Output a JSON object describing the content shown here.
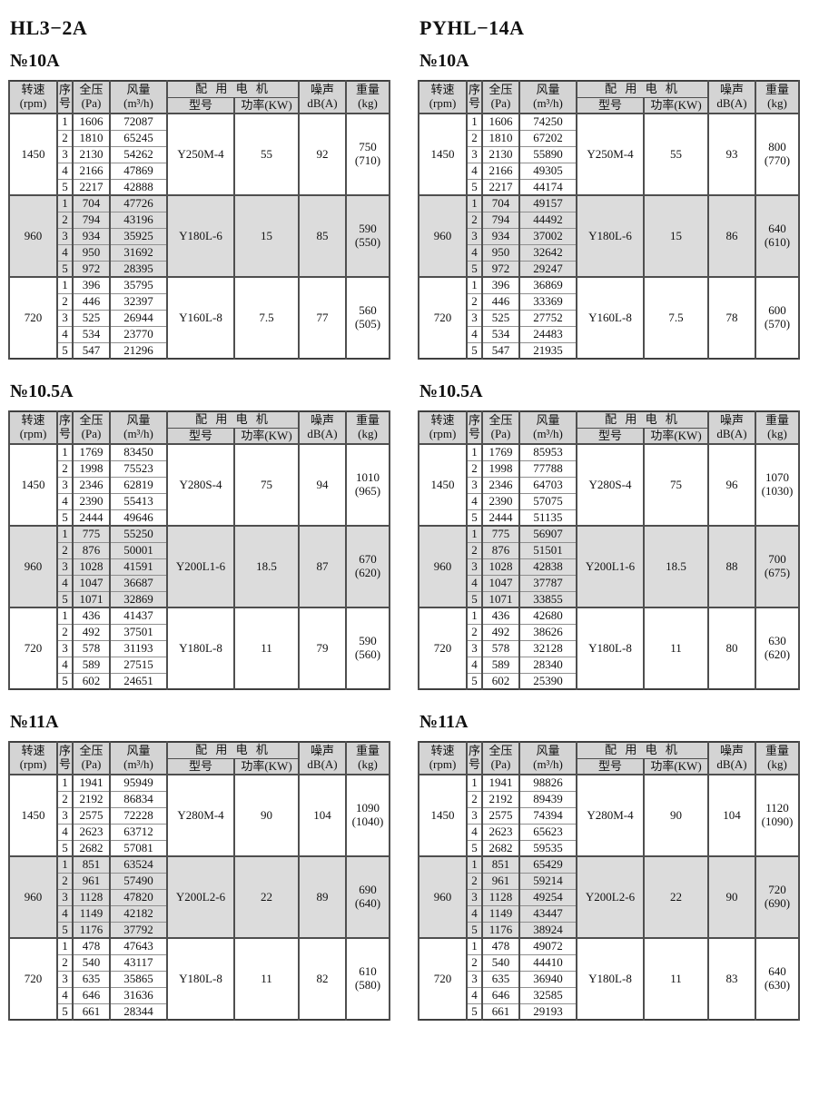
{
  "colors": {
    "header_bg": "#d4d4d4",
    "band_bg": "#dcdcdc",
    "line_dark": "#4f4f4f",
    "line_light": "#8f8f8f",
    "ink": "#111111"
  },
  "headers": {
    "speed": [
      "转速",
      "(rpm)"
    ],
    "serial": [
      "序",
      "号"
    ],
    "pressure": [
      "全压",
      "(Pa)"
    ],
    "airflow": [
      "风量",
      "(m³/h)"
    ],
    "motor_group": "配 用 电 机",
    "motor_model": "型号",
    "motor_power": "功率(KW)",
    "noise": [
      "噪声",
      "dB(A)"
    ],
    "weight": [
      "重量",
      "(kg)"
    ]
  },
  "columns": [
    {
      "model_title": "HL3−2A",
      "sections": [
        {
          "size_title": "№10A",
          "groups": [
            {
              "rpm": "1450",
              "shaded": false,
              "rows": [
                [
                  "1",
                  "1606",
                  "72087"
                ],
                [
                  "2",
                  "1810",
                  "65245"
                ],
                [
                  "3",
                  "2130",
                  "54262"
                ],
                [
                  "4",
                  "2166",
                  "47869"
                ],
                [
                  "5",
                  "2217",
                  "42888"
                ]
              ],
              "motor_model": "Y250M-4",
              "motor_power": "55",
              "noise": "92",
              "weight": "750",
              "weight_note": "(710)"
            },
            {
              "rpm": "960",
              "shaded": true,
              "rows": [
                [
                  "1",
                  "704",
                  "47726"
                ],
                [
                  "2",
                  "794",
                  "43196"
                ],
                [
                  "3",
                  "934",
                  "35925"
                ],
                [
                  "4",
                  "950",
                  "31692"
                ],
                [
                  "5",
                  "972",
                  "28395"
                ]
              ],
              "motor_model": "Y180L-6",
              "motor_power": "15",
              "noise": "85",
              "weight": "590",
              "weight_note": "(550)"
            },
            {
              "rpm": "720",
              "shaded": false,
              "rows": [
                [
                  "1",
                  "396",
                  "35795"
                ],
                [
                  "2",
                  "446",
                  "32397"
                ],
                [
                  "3",
                  "525",
                  "26944"
                ],
                [
                  "4",
                  "534",
                  "23770"
                ],
                [
                  "5",
                  "547",
                  "21296"
                ]
              ],
              "motor_model": "Y160L-8",
              "motor_power": "7.5",
              "noise": "77",
              "weight": "560",
              "weight_note": "(505)"
            }
          ]
        },
        {
          "size_title": "№10.5A",
          "groups": [
            {
              "rpm": "1450",
              "shaded": false,
              "rows": [
                [
                  "1",
                  "1769",
                  "83450"
                ],
                [
                  "2",
                  "1998",
                  "75523"
                ],
                [
                  "3",
                  "2346",
                  "62819"
                ],
                [
                  "4",
                  "2390",
                  "55413"
                ],
                [
                  "5",
                  "2444",
                  "49646"
                ]
              ],
              "motor_model": "Y280S-4",
              "motor_power": "75",
              "noise": "94",
              "weight": "1010",
              "weight_note": "(965)"
            },
            {
              "rpm": "960",
              "shaded": true,
              "rows": [
                [
                  "1",
                  "775",
                  "55250"
                ],
                [
                  "2",
                  "876",
                  "50001"
                ],
                [
                  "3",
                  "1028",
                  "41591"
                ],
                [
                  "4",
                  "1047",
                  "36687"
                ],
                [
                  "5",
                  "1071",
                  "32869"
                ]
              ],
              "motor_model": "Y200L1-6",
              "motor_power": "18.5",
              "noise": "87",
              "weight": "670",
              "weight_note": "(620)"
            },
            {
              "rpm": "720",
              "shaded": false,
              "rows": [
                [
                  "1",
                  "436",
                  "41437"
                ],
                [
                  "2",
                  "492",
                  "37501"
                ],
                [
                  "3",
                  "578",
                  "31193"
                ],
                [
                  "4",
                  "589",
                  "27515"
                ],
                [
                  "5",
                  "602",
                  "24651"
                ]
              ],
              "motor_model": "Y180L-8",
              "motor_power": "11",
              "noise": "79",
              "weight": "590",
              "weight_note": "(560)"
            }
          ]
        },
        {
          "size_title": "№11A",
          "groups": [
            {
              "rpm": "1450",
              "shaded": false,
              "rows": [
                [
                  "1",
                  "1941",
                  "95949"
                ],
                [
                  "2",
                  "2192",
                  "86834"
                ],
                [
                  "3",
                  "2575",
                  "72228"
                ],
                [
                  "4",
                  "2623",
                  "63712"
                ],
                [
                  "5",
                  "2682",
                  "57081"
                ]
              ],
              "motor_model": "Y280M-4",
              "motor_power": "90",
              "noise": "104",
              "weight": "1090",
              "weight_note": "(1040)"
            },
            {
              "rpm": "960",
              "shaded": true,
              "rows": [
                [
                  "1",
                  "851",
                  "63524"
                ],
                [
                  "2",
                  "961",
                  "57490"
                ],
                [
                  "3",
                  "1128",
                  "47820"
                ],
                [
                  "4",
                  "1149",
                  "42182"
                ],
                [
                  "5",
                  "1176",
                  "37792"
                ]
              ],
              "motor_model": "Y200L2-6",
              "motor_power": "22",
              "noise": "89",
              "weight": "690",
              "weight_note": "(640)"
            },
            {
              "rpm": "720",
              "shaded": false,
              "rows": [
                [
                  "1",
                  "478",
                  "47643"
                ],
                [
                  "2",
                  "540",
                  "43117"
                ],
                [
                  "3",
                  "635",
                  "35865"
                ],
                [
                  "4",
                  "646",
                  "31636"
                ],
                [
                  "5",
                  "661",
                  "28344"
                ]
              ],
              "motor_model": "Y180L-8",
              "motor_power": "11",
              "noise": "82",
              "weight": "610",
              "weight_note": "(580)"
            }
          ]
        }
      ]
    },
    {
      "model_title": "PYHL−14A",
      "sections": [
        {
          "size_title": "№10A",
          "groups": [
            {
              "rpm": "1450",
              "shaded": false,
              "rows": [
                [
                  "1",
                  "1606",
                  "74250"
                ],
                [
                  "2",
                  "1810",
                  "67202"
                ],
                [
                  "3",
                  "2130",
                  "55890"
                ],
                [
                  "4",
                  "2166",
                  "49305"
                ],
                [
                  "5",
                  "2217",
                  "44174"
                ]
              ],
              "motor_model": "Y250M-4",
              "motor_power": "55",
              "noise": "93",
              "weight": "800",
              "weight_note": "(770)"
            },
            {
              "rpm": "960",
              "shaded": true,
              "rows": [
                [
                  "1",
                  "704",
                  "49157"
                ],
                [
                  "2",
                  "794",
                  "44492"
                ],
                [
                  "3",
                  "934",
                  "37002"
                ],
                [
                  "4",
                  "950",
                  "32642"
                ],
                [
                  "5",
                  "972",
                  "29247"
                ]
              ],
              "motor_model": "Y180L-6",
              "motor_power": "15",
              "noise": "86",
              "weight": "640",
              "weight_note": "(610)"
            },
            {
              "rpm": "720",
              "shaded": false,
              "rows": [
                [
                  "1",
                  "396",
                  "36869"
                ],
                [
                  "2",
                  "446",
                  "33369"
                ],
                [
                  "3",
                  "525",
                  "27752"
                ],
                [
                  "4",
                  "534",
                  "24483"
                ],
                [
                  "5",
                  "547",
                  "21935"
                ]
              ],
              "motor_model": "Y160L-8",
              "motor_power": "7.5",
              "noise": "78",
              "weight": "600",
              "weight_note": "(570)"
            }
          ]
        },
        {
          "size_title": "№10.5A",
          "groups": [
            {
              "rpm": "1450",
              "shaded": false,
              "rows": [
                [
                  "1",
                  "1769",
                  "85953"
                ],
                [
                  "2",
                  "1998",
                  "77788"
                ],
                [
                  "3",
                  "2346",
                  "64703"
                ],
                [
                  "4",
                  "2390",
                  "57075"
                ],
                [
                  "5",
                  "2444",
                  "51135"
                ]
              ],
              "motor_model": "Y280S-4",
              "motor_power": "75",
              "noise": "96",
              "weight": "1070",
              "weight_note": "(1030)"
            },
            {
              "rpm": "960",
              "shaded": true,
              "rows": [
                [
                  "1",
                  "775",
                  "56907"
                ],
                [
                  "2",
                  "876",
                  "51501"
                ],
                [
                  "3",
                  "1028",
                  "42838"
                ],
                [
                  "4",
                  "1047",
                  "37787"
                ],
                [
                  "5",
                  "1071",
                  "33855"
                ]
              ],
              "motor_model": "Y200L1-6",
              "motor_power": "18.5",
              "noise": "88",
              "weight": "700",
              "weight_note": "(675)"
            },
            {
              "rpm": "720",
              "shaded": false,
              "rows": [
                [
                  "1",
                  "436",
                  "42680"
                ],
                [
                  "2",
                  "492",
                  "38626"
                ],
                [
                  "3",
                  "578",
                  "32128"
                ],
                [
                  "4",
                  "589",
                  "28340"
                ],
                [
                  "5",
                  "602",
                  "25390"
                ]
              ],
              "motor_model": "Y180L-8",
              "motor_power": "11",
              "noise": "80",
              "weight": "630",
              "weight_note": "(620)"
            }
          ]
        },
        {
          "size_title": "№11A",
          "groups": [
            {
              "rpm": "1450",
              "shaded": false,
              "rows": [
                [
                  "1",
                  "1941",
                  "98826"
                ],
                [
                  "2",
                  "2192",
                  "89439"
                ],
                [
                  "3",
                  "2575",
                  "74394"
                ],
                [
                  "4",
                  "2623",
                  "65623"
                ],
                [
                  "5",
                  "2682",
                  "59535"
                ]
              ],
              "motor_model": "Y280M-4",
              "motor_power": "90",
              "noise": "104",
              "weight": "1120",
              "weight_note": "(1090)"
            },
            {
              "rpm": "960",
              "shaded": true,
              "rows": [
                [
                  "1",
                  "851",
                  "65429"
                ],
                [
                  "2",
                  "961",
                  "59214"
                ],
                [
                  "3",
                  "1128",
                  "49254"
                ],
                [
                  "4",
                  "1149",
                  "43447"
                ],
                [
                  "5",
                  "1176",
                  "38924"
                ]
              ],
              "motor_model": "Y200L2-6",
              "motor_power": "22",
              "noise": "90",
              "weight": "720",
              "weight_note": "(690)"
            },
            {
              "rpm": "720",
              "shaded": false,
              "rows": [
                [
                  "1",
                  "478",
                  "49072"
                ],
                [
                  "2",
                  "540",
                  "44410"
                ],
                [
                  "3",
                  "635",
                  "36940"
                ],
                [
                  "4",
                  "646",
                  "32585"
                ],
                [
                  "5",
                  "661",
                  "29193"
                ]
              ],
              "motor_model": "Y180L-8",
              "motor_power": "11",
              "noise": "83",
              "weight": "640",
              "weight_note": "(630)"
            }
          ]
        }
      ]
    }
  ]
}
